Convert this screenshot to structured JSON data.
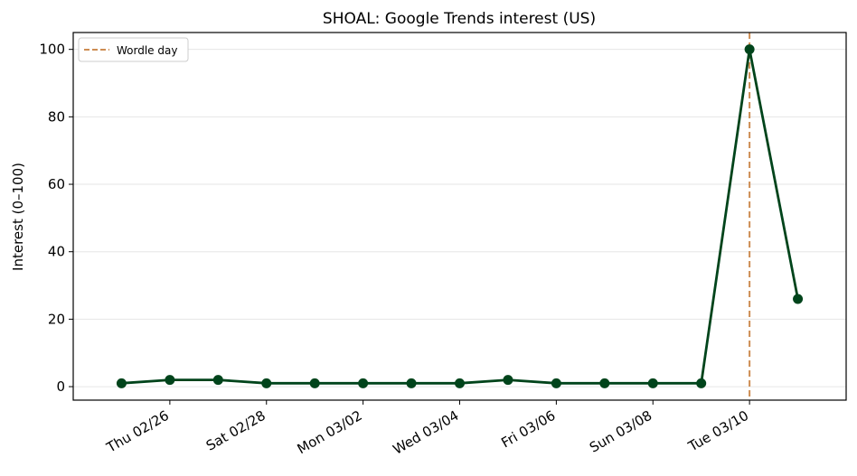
{
  "chart_data": {
    "type": "line",
    "title": "SHOAL: Google Trends interest (US)",
    "xlabel": "",
    "ylabel": "Interest (0–100)",
    "x": [
      "2026-02-25",
      "2026-02-26",
      "2026-02-27",
      "2026-02-28",
      "2026-03-01",
      "2026-03-02",
      "2026-03-03",
      "2026-03-04",
      "2026-03-05",
      "2026-03-06",
      "2026-03-07",
      "2026-03-08",
      "2026-03-09",
      "2026-03-10",
      "2026-03-11"
    ],
    "series": [
      {
        "name": "",
        "color": "#00441b",
        "values": [
          1,
          2,
          2,
          1,
          1,
          1,
          1,
          1,
          2,
          1,
          1,
          1,
          1,
          100,
          26
        ]
      }
    ],
    "xticks": [
      {
        "x": "2026-02-26",
        "label": "Thu 02/26"
      },
      {
        "x": "2026-02-28",
        "label": "Sat 02/28"
      },
      {
        "x": "2026-03-02",
        "label": "Mon 03/02"
      },
      {
        "x": "2026-03-04",
        "label": "Wed 03/04"
      },
      {
        "x": "2026-03-06",
        "label": "Fri 03/06"
      },
      {
        "x": "2026-03-08",
        "label": "Sun 03/08"
      },
      {
        "x": "2026-03-10",
        "label": "Tue 03/10"
      }
    ],
    "yticks": [
      0,
      20,
      40,
      60,
      80,
      100
    ],
    "ylim": [
      -4,
      105
    ],
    "xlim": [
      "2026-02-24",
      "2026-03-12"
    ],
    "grid": "y",
    "annotations": [
      {
        "type": "vline",
        "x": "2026-03-10",
        "label": "Wordle day",
        "color": "#cd8c52",
        "style": "dashed"
      }
    ],
    "legend": {
      "position": "top-left",
      "entries": [
        "Wordle day"
      ]
    }
  }
}
